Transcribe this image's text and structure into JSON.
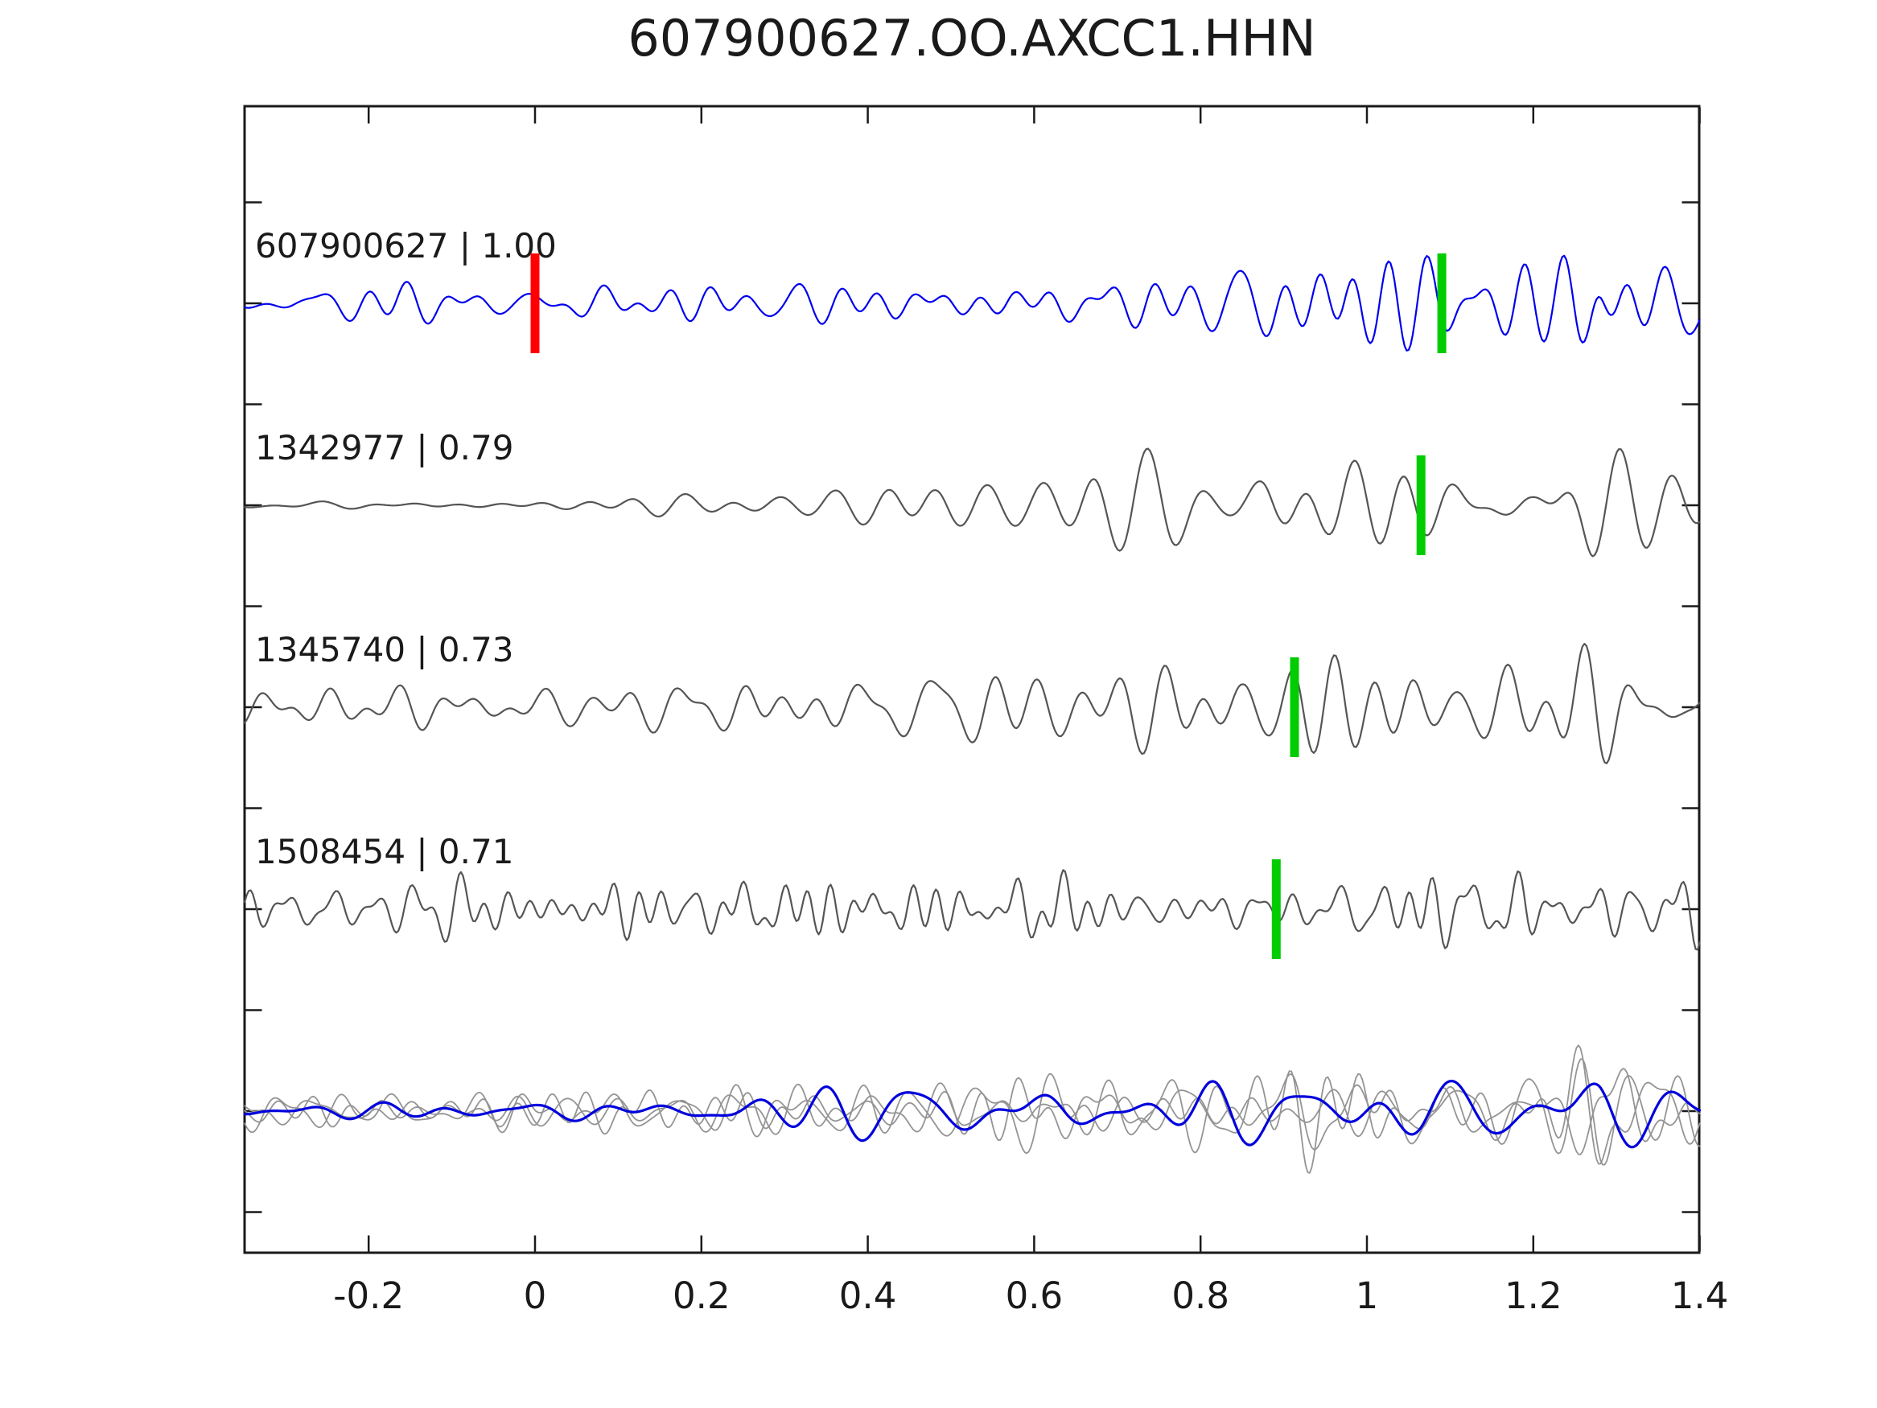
{
  "chart_data": {
    "type": "line",
    "title": "607900627.OO.AXCC1.HHN",
    "xlabel": "",
    "ylabel": "",
    "xlim": [
      -0.349,
      1.4
    ],
    "grid": false,
    "legend_position": "none",
    "x_ticks": [
      -0.2,
      0,
      0.2,
      0.4,
      0.6,
      0.8,
      1,
      1.2,
      1.4
    ],
    "x_tick_labels": [
      "-0.2",
      "0",
      "0.2",
      "0.4",
      "0.6",
      "0.8",
      "1",
      "1.2",
      "1.4"
    ],
    "colors": {
      "axis": "#1a1a1a",
      "template_blue": "#0000ee",
      "trace_gray": "#555555",
      "overlay_gray": "#949494",
      "overlay_blue": "#0000dd",
      "reference_pick_red": "#ff0000",
      "aligned_pick_green": "#00cc00"
    },
    "traces": [
      {
        "label": "607900627 | 1.00",
        "event_id": "607900627",
        "correlation": 1.0,
        "color": "#0000ee",
        "line_width": 2.2,
        "seed": 20,
        "components": 26,
        "freq_lo": 8,
        "freq_hi": 26,
        "envelope": [
          [
            -0.35,
            30
          ],
          [
            0.3,
            32
          ],
          [
            0.6,
            36
          ],
          [
            0.8,
            42
          ],
          [
            0.9,
            68
          ],
          [
            0.97,
            75
          ],
          [
            1.05,
            60
          ],
          [
            1.15,
            55
          ],
          [
            1.22,
            60
          ],
          [
            1.28,
            130
          ],
          [
            1.34,
            80
          ],
          [
            1.4,
            60
          ]
        ]
      },
      {
        "label": "1342977 | 0.79",
        "event_id": "1342977",
        "correlation": 0.79,
        "color": "#555555",
        "line_width": 2.2,
        "seed": 7,
        "components": 24,
        "freq_lo": 7,
        "freq_hi": 20,
        "envelope": [
          [
            -0.35,
            8
          ],
          [
            0.05,
            10
          ],
          [
            0.2,
            16
          ],
          [
            0.35,
            40
          ],
          [
            0.55,
            65
          ],
          [
            0.7,
            70
          ],
          [
            0.82,
            90
          ],
          [
            0.88,
            135
          ],
          [
            0.95,
            90
          ],
          [
            1.07,
            95
          ],
          [
            1.15,
            60
          ],
          [
            1.2,
            55
          ],
          [
            1.27,
            120
          ],
          [
            1.33,
            90
          ],
          [
            1.4,
            60
          ]
        ]
      },
      {
        "label": "1345740 | 0.73",
        "event_id": "1345740",
        "correlation": 0.73,
        "color": "#555555",
        "line_width": 2.2,
        "seed": 13,
        "components": 26,
        "freq_lo": 8,
        "freq_hi": 24,
        "envelope": [
          [
            -0.35,
            40
          ],
          [
            0.2,
            42
          ],
          [
            0.5,
            48
          ],
          [
            0.7,
            55
          ],
          [
            0.85,
            70
          ],
          [
            0.91,
            130
          ],
          [
            1.0,
            80
          ],
          [
            1.08,
            75
          ],
          [
            1.15,
            85
          ],
          [
            1.22,
            70
          ],
          [
            1.28,
            120
          ],
          [
            1.35,
            90
          ],
          [
            1.4,
            55
          ]
        ]
      },
      {
        "label": "1508454 | 0.71",
        "event_id": "1508454",
        "correlation": 0.71,
        "color": "#555555",
        "line_width": 2.2,
        "seed": 5,
        "components": 30,
        "freq_lo": 12,
        "freq_hi": 40,
        "envelope": [
          [
            -0.35,
            50
          ],
          [
            0.1,
            55
          ],
          [
            0.3,
            60
          ],
          [
            0.5,
            75
          ],
          [
            0.65,
            65
          ],
          [
            0.8,
            70
          ],
          [
            0.9,
            65
          ],
          [
            1.02,
            90
          ],
          [
            1.1,
            70
          ],
          [
            1.2,
            60
          ],
          [
            1.3,
            65
          ],
          [
            1.4,
            50
          ]
        ]
      }
    ],
    "overlay_traces": [
      {
        "name": "overlay-gray-1",
        "color": "#949494",
        "line_width": 1.8,
        "seed": 31,
        "components": 26,
        "freq_lo": 8,
        "freq_hi": 28,
        "envelope": [
          [
            -0.35,
            30
          ],
          [
            0.2,
            40
          ],
          [
            0.45,
            55
          ],
          [
            0.6,
            55
          ],
          [
            0.8,
            70
          ],
          [
            0.9,
            80
          ],
          [
            1.0,
            70
          ],
          [
            1.1,
            65
          ],
          [
            1.2,
            70
          ],
          [
            1.28,
            100
          ],
          [
            1.35,
            75
          ],
          [
            1.4,
            55
          ]
        ]
      },
      {
        "name": "overlay-gray-2",
        "color": "#949494",
        "line_width": 1.8,
        "seed": 47,
        "components": 26,
        "freq_lo": 8,
        "freq_hi": 28,
        "envelope": [
          [
            -0.35,
            28
          ],
          [
            0.2,
            42
          ],
          [
            0.45,
            58
          ],
          [
            0.6,
            52
          ],
          [
            0.8,
            72
          ],
          [
            0.9,
            78
          ],
          [
            1.0,
            72
          ],
          [
            1.1,
            62
          ],
          [
            1.2,
            72
          ],
          [
            1.28,
            98
          ],
          [
            1.35,
            72
          ],
          [
            1.4,
            52
          ]
        ]
      },
      {
        "name": "overlay-gray-3",
        "color": "#949494",
        "line_width": 1.8,
        "seed": 59,
        "components": 26,
        "freq_lo": 8,
        "freq_hi": 28,
        "envelope": [
          [
            -0.35,
            26
          ],
          [
            0.2,
            38
          ],
          [
            0.45,
            52
          ],
          [
            0.6,
            58
          ],
          [
            0.8,
            68
          ],
          [
            0.9,
            82
          ],
          [
            1.0,
            68
          ],
          [
            1.1,
            66
          ],
          [
            1.2,
            68
          ],
          [
            1.28,
            102
          ],
          [
            1.35,
            78
          ],
          [
            1.4,
            56
          ]
        ]
      },
      {
        "name": "overlay-blue",
        "color": "#0000dd",
        "line_width": 3.2,
        "seed": 77,
        "components": 18,
        "freq_lo": 6,
        "freq_hi": 16,
        "envelope": [
          [
            -0.35,
            18
          ],
          [
            0.2,
            25
          ],
          [
            0.45,
            40
          ],
          [
            0.6,
            45
          ],
          [
            0.75,
            50
          ],
          [
            0.9,
            60
          ],
          [
            1.0,
            55
          ],
          [
            1.1,
            50
          ],
          [
            1.2,
            55
          ],
          [
            1.28,
            80
          ],
          [
            1.35,
            60
          ],
          [
            1.4,
            45
          ]
        ]
      }
    ],
    "picks": [
      {
        "trace": 0,
        "t": 0.0,
        "color": "#ff0000",
        "kind": "reference-pick"
      },
      {
        "trace": 0,
        "t": 1.09,
        "color": "#00cc00",
        "kind": "aligned-pick"
      },
      {
        "trace": 1,
        "t": 1.065,
        "color": "#00cc00",
        "kind": "aligned-pick"
      },
      {
        "trace": 2,
        "t": 0.913,
        "color": "#00cc00",
        "kind": "aligned-pick"
      },
      {
        "trace": 3,
        "t": 0.891,
        "color": "#00cc00",
        "kind": "aligned-pick"
      }
    ]
  }
}
